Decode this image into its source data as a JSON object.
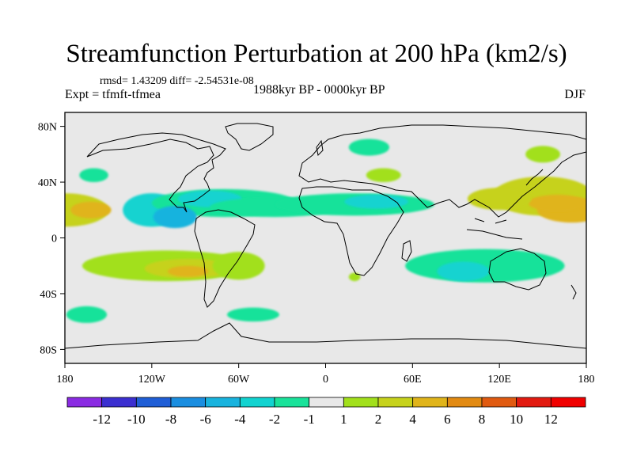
{
  "title": "Streamfunction Perturbation at 200 hPa (km2/s)",
  "stats_line": "rmsd= 1.43209 diff= -2.54531e-08",
  "expt_line": "Expt = tfmft-tfmea",
  "period_line": "1988kyr BP - 0000kyr BP",
  "season": "DJF",
  "chart_data": {
    "type": "heatmap",
    "projection": "cylindrical-equidistant",
    "variable": "Streamfunction Perturbation",
    "level": "200 hPa",
    "units": "km2/s",
    "x": {
      "range": [
        -180,
        180
      ],
      "ticks": [
        -180,
        -120,
        -60,
        0,
        60,
        120,
        180
      ],
      "tick_labels": [
        "180",
        "120W",
        "60W",
        "0",
        "60E",
        "120E",
        "180"
      ]
    },
    "y": {
      "range": [
        -90,
        90
      ],
      "ticks": [
        80,
        40,
        0,
        -40,
        -80
      ],
      "tick_labels": [
        "80N",
        "40N",
        "0",
        "40S",
        "80S"
      ]
    },
    "contour_levels": [
      -12,
      -10,
      -8,
      -6,
      -4,
      -2,
      -1,
      1,
      2,
      4,
      6,
      8,
      10,
      12
    ],
    "colorbar_labels": [
      "-12",
      "-10",
      "-8",
      "-6",
      "-4",
      "-2",
      "-1",
      "1",
      "2",
      "4",
      "6",
      "8",
      "10",
      "12"
    ],
    "colors": [
      "#8a2be2",
      "#3b2fd0",
      "#1f5ed6",
      "#1a8ee0",
      "#18b3de",
      "#12d3d0",
      "#19e29a",
      "#e8e8e8",
      "#a2e01c",
      "#c6d21c",
      "#e0b41a",
      "#e28a12",
      "#e05a10",
      "#e21a10",
      "#f00000"
    ],
    "features": [
      {
        "lon": -180,
        "lat": 20,
        "rx": 30,
        "ry": 12,
        "value": 2.5
      },
      {
        "lon": -162,
        "lat": 20,
        "rx": 14,
        "ry": 6,
        "value": 5
      },
      {
        "lon": -160,
        "lat": 45,
        "rx": 10,
        "ry": 5,
        "value": -1.5
      },
      {
        "lon": -120,
        "lat": 20,
        "rx": 20,
        "ry": 12,
        "value": -2.5
      },
      {
        "lon": -70,
        "lat": 25,
        "rx": 50,
        "ry": 10,
        "value": -1.5
      },
      {
        "lon": -80,
        "lat": 28,
        "rx": 22,
        "ry": 6,
        "value": -2.5
      },
      {
        "lon": -35,
        "lat": 22,
        "rx": 45,
        "ry": 7,
        "value": -1.5
      },
      {
        "lon": 20,
        "lat": 24,
        "rx": 55,
        "ry": 8,
        "value": -1.5
      },
      {
        "lon": 35,
        "lat": 26,
        "rx": 22,
        "ry": 5,
        "value": -2.5
      },
      {
        "lon": -104,
        "lat": 15,
        "rx": 15,
        "ry": 8,
        "value": -4.5
      },
      {
        "lon": 30,
        "lat": 65,
        "rx": 14,
        "ry": 6,
        "value": -1.5
      },
      {
        "lon": 40,
        "lat": 45,
        "rx": 12,
        "ry": 5,
        "value": 1.5
      },
      {
        "lon": 150,
        "lat": 60,
        "rx": 12,
        "ry": 6,
        "value": 1.5
      },
      {
        "lon": 150,
        "lat": 30,
        "rx": 35,
        "ry": 14,
        "value": 2.5
      },
      {
        "lon": 170,
        "lat": 20,
        "rx": 24,
        "ry": 9,
        "value": 5
      },
      {
        "lon": 160,
        "lat": 25,
        "rx": 20,
        "ry": 6,
        "value": 4
      },
      {
        "lon": 120,
        "lat": 28,
        "rx": 22,
        "ry": 8,
        "value": 3
      },
      {
        "lon": 110,
        "lat": -20,
        "rx": 55,
        "ry": 12,
        "value": -1.5
      },
      {
        "lon": 95,
        "lat": -24,
        "rx": 18,
        "ry": 7,
        "value": -2.5
      },
      {
        "lon": -110,
        "lat": -20,
        "rx": 58,
        "ry": 11,
        "value": 1.5
      },
      {
        "lon": -95,
        "lat": -22,
        "rx": 30,
        "ry": 7,
        "value": 2.5
      },
      {
        "lon": -95,
        "lat": -24,
        "rx": 14,
        "ry": 4,
        "value": 4
      },
      {
        "lon": -60,
        "lat": -20,
        "rx": 18,
        "ry": 10,
        "value": 1.5
      },
      {
        "lon": -165,
        "lat": -55,
        "rx": 14,
        "ry": 6,
        "value": -1.5
      },
      {
        "lon": -50,
        "lat": -55,
        "rx": 18,
        "ry": 5,
        "value": -1.5
      },
      {
        "lon": 20,
        "lat": -28,
        "rx": 4,
        "ry": 3,
        "value": 1.5
      }
    ]
  }
}
